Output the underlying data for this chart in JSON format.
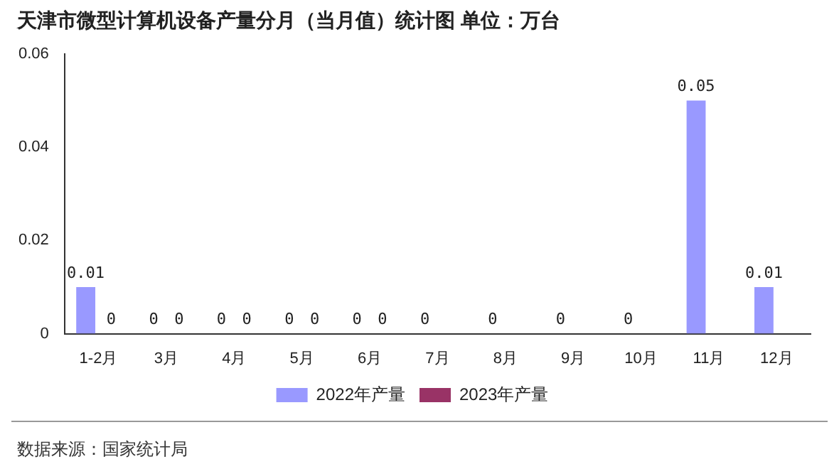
{
  "chart_data": {
    "type": "bar",
    "title": "天津市微型计算机设备产量分月（当月值）统计图 单位：万台",
    "categories": [
      "1-2月",
      "3月",
      "4月",
      "5月",
      "6月",
      "7月",
      "8月",
      "9月",
      "10月",
      "11月",
      "12月"
    ],
    "series": [
      {
        "name": "2022年产量",
        "color": "#9999ff",
        "values": [
          0.01,
          0,
          0,
          0,
          0,
          0,
          0,
          0,
          0,
          0.05,
          0.01
        ]
      },
      {
        "name": "2023年产量",
        "color": "#993366",
        "values": [
          0,
          0,
          0,
          0,
          0,
          null,
          null,
          null,
          null,
          null,
          null
        ]
      }
    ],
    "ylim": [
      0,
      0.06
    ],
    "yticks": [
      {
        "value": 0,
        "label": "0"
      },
      0.02,
      0.04,
      0.06
    ],
    "grid": false,
    "legend": "bottom",
    "data_labels": true,
    "annotations": [
      "数据来源：国家统计局"
    ]
  }
}
